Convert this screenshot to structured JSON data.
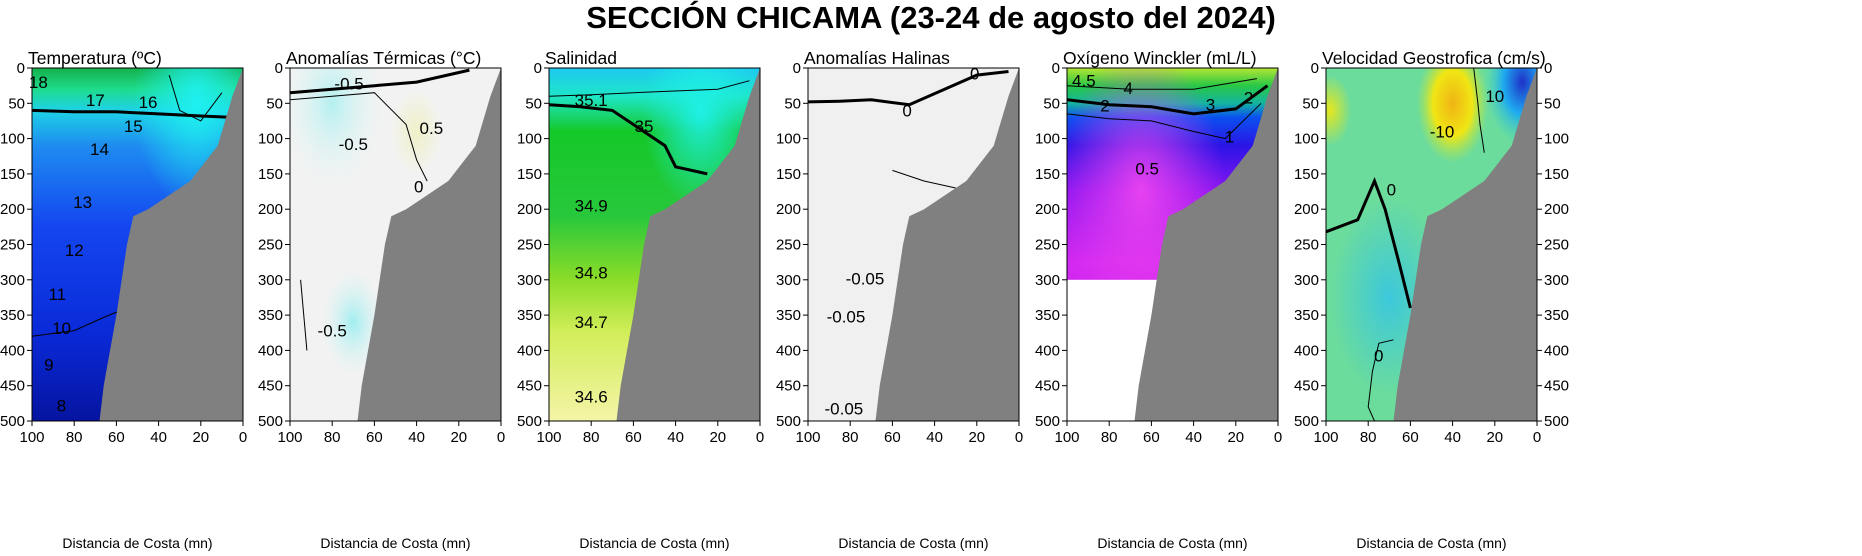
{
  "title": "SECCIÓN CHICAMA (23-24 de agosto del 2024)",
  "colors": {
    "land": "#808080",
    "axis": "#000000",
    "contour": "#000000"
  },
  "chart_data": [
    {
      "type": "heatmap",
      "title": "Temperatura (ºC)",
      "xlabel": "Distancia de Costa (mn)",
      "ylabel": "",
      "xlim": [
        100,
        0
      ],
      "ylim": [
        0,
        500
      ],
      "xticks": [
        "100",
        "80",
        "60",
        "40",
        "20",
        "0"
      ],
      "yticks": [
        "0",
        "50",
        "100",
        "150",
        "200",
        "250",
        "300",
        "350",
        "400",
        "450",
        "500"
      ],
      "ytick_side": "left",
      "colormap": [
        "#14b04a",
        "#1ee6e6",
        "#1e7ef0",
        "#1446f0",
        "#0a2ad8",
        "#0614a0"
      ],
      "contour_labels": [
        {
          "text": "18",
          "x": 97,
          "y": 20
        },
        {
          "text": "17",
          "x": 70,
          "y": 45
        },
        {
          "text": "16",
          "x": 45,
          "y": 48
        },
        {
          "text": "15",
          "x": 52,
          "y": 82
        },
        {
          "text": "14",
          "x": 68,
          "y": 115
        },
        {
          "text": "13",
          "x": 76,
          "y": 190
        },
        {
          "text": "12",
          "x": 80,
          "y": 258
        },
        {
          "text": "11",
          "x": 88,
          "y": 320
        },
        {
          "text": "10",
          "x": 86,
          "y": 368
        },
        {
          "text": "9",
          "x": 92,
          "y": 420
        },
        {
          "text": "8",
          "x": 86,
          "y": 478
        }
      ]
    },
    {
      "type": "heatmap",
      "title": "Anomalías Térmicas (°C)",
      "xlabel": "Distancia de Costa (mn)",
      "ylabel": "",
      "xlim": [
        100,
        0
      ],
      "ylim": [
        0,
        500
      ],
      "xticks": [
        "100",
        "80",
        "60",
        "40",
        "20",
        "0"
      ],
      "yticks": [
        "0",
        "50",
        "100",
        "150",
        "200",
        "250",
        "300",
        "350",
        "400",
        "450",
        "500"
      ],
      "ytick_side": "left",
      "colormap": [
        "#f2f2f2",
        "#d8f4f4"
      ],
      "contour_labels": [
        {
          "text": "-0.5",
          "x": 72,
          "y": 22
        },
        {
          "text": "-0.5",
          "x": 70,
          "y": 108
        },
        {
          "text": "0.5",
          "x": 33,
          "y": 85
        },
        {
          "text": "0",
          "x": 39,
          "y": 168
        },
        {
          "text": "-0.5",
          "x": 80,
          "y": 372
        }
      ]
    },
    {
      "type": "heatmap",
      "title": "Salinidad",
      "xlabel": "Distancia de Costa (mn)",
      "ylabel": "",
      "xlim": [
        100,
        0
      ],
      "ylim": [
        0,
        500
      ],
      "xticks": [
        "100",
        "80",
        "60",
        "40",
        "20",
        "0"
      ],
      "yticks": [
        "0",
        "50",
        "100",
        "150",
        "200",
        "250",
        "300",
        "350",
        "400",
        "450",
        "500"
      ],
      "ytick_side": "left",
      "colormap": [
        "#1ec8f0",
        "#1ee6b4",
        "#14c828",
        "#3cd214",
        "#a0e628",
        "#f0f0a0"
      ],
      "contour_labels": [
        {
          "text": "35.1",
          "x": 80,
          "y": 45
        },
        {
          "text": "35",
          "x": 55,
          "y": 82
        },
        {
          "text": "34.9",
          "x": 80,
          "y": 195
        },
        {
          "text": "34.8",
          "x": 80,
          "y": 290
        },
        {
          "text": "34.7",
          "x": 80,
          "y": 360
        },
        {
          "text": "34.6",
          "x": 80,
          "y": 465
        }
      ]
    },
    {
      "type": "heatmap",
      "title": "Anomalías Halinas",
      "xlabel": "Distancia de Costa (mn)",
      "ylabel": "",
      "xlim": [
        100,
        0
      ],
      "ylim": [
        0,
        500
      ],
      "xticks": [
        "100",
        "80",
        "60",
        "40",
        "20",
        "0"
      ],
      "yticks": [
        "0",
        "50",
        "100",
        "150",
        "200",
        "250",
        "300",
        "350",
        "400",
        "450",
        "500"
      ],
      "ytick_side": "left",
      "colormap": [
        "#f0f0f0"
      ],
      "contour_labels": [
        {
          "text": "0",
          "x": 21,
          "y": 8
        },
        {
          "text": "0",
          "x": 53,
          "y": 60
        },
        {
          "text": "-0.05",
          "x": 73,
          "y": 298
        },
        {
          "text": "-0.05",
          "x": 82,
          "y": 352
        },
        {
          "text": "-0.05",
          "x": 83,
          "y": 482
        }
      ]
    },
    {
      "type": "heatmap",
      "title": "Oxígeno Winckler (mL/L)",
      "xlabel": "Distancia de Costa (mn)",
      "ylabel": "",
      "xlim": [
        100,
        0
      ],
      "ylim": [
        0,
        500
      ],
      "xticks": [
        "100",
        "80",
        "60",
        "40",
        "20",
        "0"
      ],
      "yticks": [
        "0",
        "50",
        "100",
        "150",
        "200",
        "250",
        "300",
        "350",
        "400",
        "450",
        "500"
      ],
      "ytick_side": "left",
      "data_max_depth": 300,
      "colormap": [
        "#c8e628",
        "#28c846",
        "#14b4a0",
        "#0a64f0",
        "#2814e6",
        "#6414f0",
        "#b41ef0",
        "#e628f0"
      ],
      "contour_labels": [
        {
          "text": "4.5",
          "x": 92,
          "y": 18
        },
        {
          "text": "4",
          "x": 71,
          "y": 28
        },
        {
          "text": "3",
          "x": 32,
          "y": 52
        },
        {
          "text": "2",
          "x": 82,
          "y": 53
        },
        {
          "text": "2",
          "x": 14,
          "y": 42
        },
        {
          "text": "1",
          "x": 23,
          "y": 97
        },
        {
          "text": "0.5",
          "x": 62,
          "y": 142
        }
      ]
    },
    {
      "type": "heatmap",
      "title": "Velocidad Geostrofica (cm/s)",
      "xlabel": "Distancia de Costa (mn)",
      "ylabel": "",
      "xlim": [
        100,
        0
      ],
      "ylim": [
        0,
        500
      ],
      "xticks": [
        "100",
        "80",
        "60",
        "40",
        "20",
        "0"
      ],
      "yticks": [
        "0",
        "50",
        "100",
        "150",
        "200",
        "250",
        "300",
        "350",
        "400",
        "450",
        "500"
      ],
      "ytick_side": "both",
      "colormap": [
        "#1e3cd2",
        "#1eaaf0",
        "#3cd2c8",
        "#64dc8c",
        "#b4e646",
        "#f0e614",
        "#f0b414"
      ],
      "contour_labels": [
        {
          "text": "10",
          "x": 20,
          "y": 40
        },
        {
          "text": "-10",
          "x": 45,
          "y": 90
        },
        {
          "text": "0",
          "x": 69,
          "y": 172
        },
        {
          "text": "0",
          "x": 75,
          "y": 407
        }
      ]
    }
  ]
}
